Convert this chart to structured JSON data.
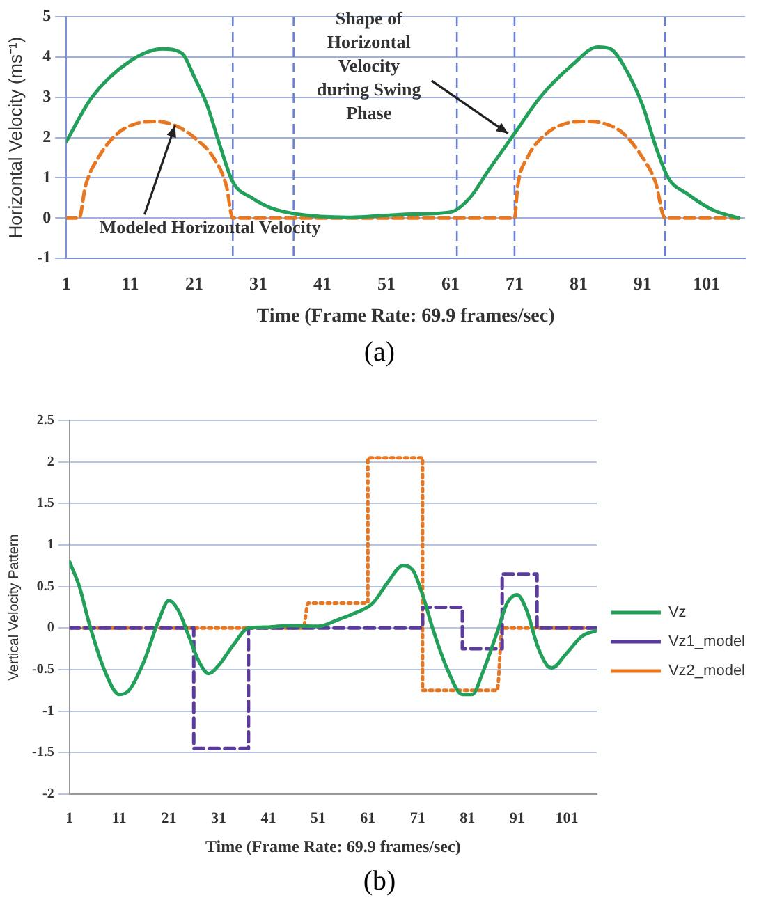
{
  "chart_data": [
    {
      "type": "line",
      "xlabel": "Time (Frame Rate: 69.9 frames/sec)",
      "ylabel": "Horizontal Velocity (ms⁻¹)",
      "xlim": [
        1,
        107
      ],
      "ylim": [
        -1,
        5
      ],
      "xticks": [
        1,
        11,
        21,
        31,
        41,
        51,
        61,
        71,
        81,
        91,
        101
      ],
      "yticks": [
        -1,
        0,
        1,
        2,
        3,
        4,
        5
      ],
      "grid": "y",
      "legend": false,
      "marker": "none",
      "series": [
        {
          "color": "#22a05a",
          "line_style": "solid",
          "x": [
            1,
            5,
            11,
            16,
            19,
            21,
            23,
            25,
            27,
            30,
            33,
            37,
            45,
            55,
            61,
            64,
            67,
            71,
            75,
            80,
            84,
            86,
            88,
            91,
            93,
            95,
            98,
            102,
            106
          ],
          "values": [
            1.9,
            3.0,
            3.9,
            4.2,
            4.1,
            3.5,
            2.8,
            1.8,
            0.9,
            0.5,
            0.25,
            0.1,
            0.02,
            0.1,
            0.15,
            0.5,
            1.2,
            2.1,
            3.0,
            3.8,
            4.25,
            4.2,
            3.8,
            2.8,
            1.8,
            1.0,
            0.6,
            0.2,
            0
          ]
        },
        {
          "color": "#e87722",
          "line_style": "dashed",
          "x": [
            1,
            3,
            4,
            6,
            9,
            12,
            15,
            18,
            21,
            24,
            26,
            27,
            71,
            71.5,
            73,
            76,
            79,
            82,
            85,
            88,
            91,
            93,
            94.5,
            106
          ],
          "values": [
            0,
            0,
            0.8,
            1.5,
            2.1,
            2.35,
            2.4,
            2.3,
            2.0,
            1.5,
            0.8,
            0,
            0,
            0.8,
            1.5,
            2.1,
            2.35,
            2.4,
            2.35,
            2.1,
            1.5,
            0.9,
            0,
            0
          ]
        }
      ],
      "ref_lines": [
        {
          "axis": "x",
          "value": 27,
          "color": "#6a7fd8",
          "line_style": "dashed"
        },
        {
          "axis": "x",
          "value": 36.5,
          "color": "#6a7fd8",
          "line_style": "dashed"
        },
        {
          "axis": "x",
          "value": 62,
          "color": "#6a7fd8",
          "line_style": "dashed"
        },
        {
          "axis": "x",
          "value": 71,
          "color": "#6a7fd8",
          "line_style": "dashed"
        },
        {
          "axis": "x",
          "value": 94.5,
          "color": "#6a7fd8",
          "line_style": "dashed"
        }
      ],
      "annotations": [
        {
          "text": "Shape of Horizontal Velocity during Swing Phase",
          "x": 70,
          "y": 2.1
        },
        {
          "text": "Modeled Horizontal Velocity",
          "x": 18,
          "y": 2.3
        },
        "(a)"
      ]
    },
    {
      "type": "line",
      "xlabel": "Time (Frame Rate: 69.9 frames/sec)",
      "ylabel": "Vertical Velocity Pattern",
      "xlim": [
        1,
        107
      ],
      "ylim": [
        -2,
        2.5
      ],
      "xticks": [
        1,
        11,
        21,
        31,
        41,
        51,
        61,
        71,
        81,
        91,
        101
      ],
      "yticks": [
        -2,
        -1.5,
        -1,
        -0.5,
        0,
        0.5,
        1,
        1.5,
        2,
        2.5
      ],
      "grid": "y",
      "legend": "right",
      "marker": "none",
      "series": [
        {
          "name": "Vz",
          "color": "#22a05a",
          "line_style": "solid",
          "x": [
            1,
            3,
            5,
            8,
            11,
            13,
            16,
            19,
            21,
            23,
            25,
            27,
            29,
            31,
            34,
            37,
            41,
            45,
            51,
            55,
            58,
            62,
            65,
            68,
            70,
            72,
            74,
            77,
            80,
            82,
            84,
            87,
            89,
            91,
            93,
            95,
            97,
            98,
            101,
            104,
            107
          ],
          "values": [
            0.8,
            0.5,
            0.05,
            -0.5,
            -0.8,
            -0.75,
            -0.4,
            0.1,
            0.33,
            0.2,
            -0.1,
            -0.4,
            -0.55,
            -0.45,
            -0.2,
            0,
            0.01,
            0.03,
            0.02,
            0.1,
            0.17,
            0.3,
            0.55,
            0.75,
            0.7,
            0.4,
            0,
            -0.5,
            -0.8,
            -0.8,
            -0.55,
            -0.05,
            0.3,
            0.4,
            0.2,
            -0.2,
            -0.45,
            -0.48,
            -0.3,
            -0.1,
            -0.03
          ]
        },
        {
          "name": "Vz1_model",
          "color": "#5b3c9c",
          "line_style": "dashed",
          "x": [
            1,
            26,
            26,
            37,
            37,
            72,
            72,
            80,
            80,
            88,
            88,
            95,
            95,
            107
          ],
          "values": [
            0,
            0,
            -1.45,
            -1.45,
            0,
            0,
            0.25,
            0.25,
            -0.25,
            -0.25,
            0.65,
            0.65,
            0,
            0
          ]
        },
        {
          "name": "Vz2_model",
          "color": "#e87722",
          "line_style": "dotted",
          "x": [
            1,
            48,
            49,
            61,
            61,
            72,
            72,
            87,
            88,
            107
          ],
          "values": [
            0,
            0,
            0.3,
            0.3,
            2.05,
            2.05,
            -0.75,
            -0.75,
            0,
            0
          ]
        }
      ],
      "annotations": [
        "(b)"
      ]
    }
  ]
}
